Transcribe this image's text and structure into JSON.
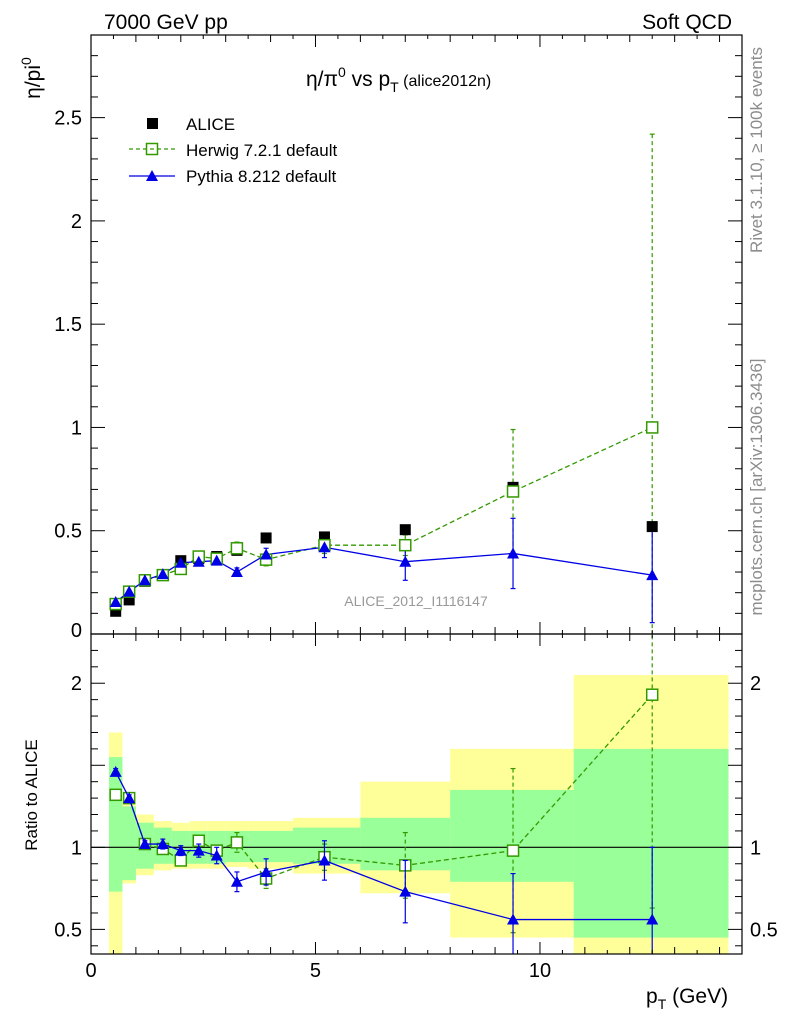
{
  "header": {
    "left": "7000 GeV pp",
    "right": "Soft QCD"
  },
  "side_labels": {
    "rivet": "Rivet 3.1.10, ≥ 100k events",
    "mcplots": "mcplots.cern.ch [arXiv:1306.3436]"
  },
  "chart_data": [
    {
      "type": "scatter",
      "title": "η/π⁰ vs p_T (alice2012n)",
      "ylabel": "η/pi⁰",
      "xlim": [
        0,
        14.5
      ],
      "ylim": [
        0,
        2.9
      ],
      "yticks": [
        "0",
        "0.5",
        "1",
        "1.5",
        "2",
        "2.5"
      ],
      "watermark": "ALICE_2012_I1116147",
      "series": [
        {
          "name": "ALICE",
          "color": "#000000",
          "x": [
            0.55,
            0.85,
            1.2,
            1.6,
            2.0,
            2.4,
            2.8,
            3.25,
            3.9,
            5.2,
            7.0,
            9.4,
            12.5
          ],
          "y": [
            0.11,
            0.165,
            0.255,
            0.285,
            0.355,
            0.365,
            0.375,
            0.405,
            0.465,
            0.47,
            0.505,
            0.71,
            0.52
          ]
        },
        {
          "name": "Herwig 7.2.1 default",
          "color": "#339900",
          "x": [
            0.55,
            0.85,
            1.2,
            1.6,
            2.0,
            2.4,
            2.8,
            3.25,
            3.9,
            5.2,
            7.0,
            9.4,
            12.5
          ],
          "y": [
            0.145,
            0.205,
            0.26,
            0.285,
            0.315,
            0.375,
            0.365,
            0.415,
            0.36,
            0.43,
            0.43,
            0.69,
            1.0
          ],
          "err": [
            0.02,
            0.02,
            0.02,
            0.02,
            0.02,
            0.02,
            0.02,
            0.03,
            0.03,
            0.04,
            0.05,
            0.3,
            1.42
          ]
        },
        {
          "name": "Pythia 8.212 default",
          "color": "#0000e6",
          "x": [
            0.55,
            0.85,
            1.2,
            1.6,
            2.0,
            2.4,
            2.8,
            3.25,
            3.9,
            5.2,
            7.0,
            9.4,
            12.5
          ],
          "y": [
            0.155,
            0.205,
            0.26,
            0.29,
            0.345,
            0.35,
            0.355,
            0.3,
            0.385,
            0.42,
            0.35,
            0.39,
            0.285
          ],
          "err": [
            0.015,
            0.015,
            0.015,
            0.015,
            0.02,
            0.02,
            0.02,
            0.02,
            0.03,
            0.05,
            0.09,
            0.17,
            0.23
          ]
        }
      ]
    },
    {
      "type": "scatter",
      "ylabel": "Ratio to ALICE",
      "xlabel": "p_T (GeV)",
      "xlim": [
        0,
        14.5
      ],
      "ylim": [
        0.35,
        2.3
      ],
      "xticks": [
        "0",
        "5",
        "10"
      ],
      "yticks": [
        "0.5",
        "1",
        "2"
      ],
      "bands": [
        {
          "x0": 0.4,
          "x1": 0.7,
          "stat": [
            0.73,
            1.55
          ],
          "tot": [
            0.3,
            1.7
          ]
        },
        {
          "x0": 0.7,
          "x1": 1.0,
          "stat": [
            0.8,
            1.25
          ],
          "tot": [
            0.78,
            1.3
          ]
        },
        {
          "x0": 1.0,
          "x1": 1.4,
          "stat": [
            0.87,
            1.15
          ],
          "tot": [
            0.83,
            1.2
          ]
        },
        {
          "x0": 1.4,
          "x1": 1.8,
          "stat": [
            0.9,
            1.12
          ],
          "tot": [
            0.86,
            1.16
          ]
        },
        {
          "x0": 1.8,
          "x1": 2.2,
          "stat": [
            0.9,
            1.1
          ],
          "tot": [
            0.87,
            1.15
          ]
        },
        {
          "x0": 2.2,
          "x1": 2.6,
          "stat": [
            0.9,
            1.1
          ],
          "tot": [
            0.87,
            1.16
          ]
        },
        {
          "x0": 2.6,
          "x1": 3.0,
          "stat": [
            0.9,
            1.1
          ],
          "tot": [
            0.87,
            1.16
          ]
        },
        {
          "x0": 3.0,
          "x1": 3.5,
          "stat": [
            0.91,
            1.1
          ],
          "tot": [
            0.88,
            1.16
          ]
        },
        {
          "x0": 3.5,
          "x1": 4.5,
          "stat": [
            0.91,
            1.1
          ],
          "tot": [
            0.87,
            1.16
          ]
        },
        {
          "x0": 4.5,
          "x1": 6.0,
          "stat": [
            0.9,
            1.12
          ],
          "tot": [
            0.84,
            1.18
          ]
        },
        {
          "x0": 6.0,
          "x1": 8.0,
          "stat": [
            0.86,
            1.18
          ],
          "tot": [
            0.72,
            1.4
          ]
        },
        {
          "x0": 8.0,
          "x1": 10.75,
          "stat": [
            0.79,
            1.35
          ],
          "tot": [
            0.45,
            1.6
          ]
        },
        {
          "x0": 10.75,
          "x1": 14.2,
          "stat": [
            0.45,
            1.6
          ],
          "tot": [
            0.35,
            2.05
          ]
        }
      ],
      "series": [
        {
          "name": "Herwig 7.2.1 default",
          "color": "#339900",
          "x": [
            0.55,
            0.85,
            1.2,
            1.6,
            2.0,
            2.4,
            2.8,
            3.25,
            3.9,
            5.2,
            7.0,
            9.4,
            12.5
          ],
          "y": [
            1.32,
            1.3,
            1.02,
            0.99,
            0.92,
            1.04,
            0.98,
            1.03,
            0.81,
            0.94,
            0.89,
            0.98,
            1.93
          ],
          "err": [
            0.02,
            0.02,
            0.02,
            0.02,
            0.03,
            0.03,
            0.03,
            0.06,
            0.06,
            0.08,
            0.2,
            0.5,
            1.3
          ]
        },
        {
          "name": "Pythia 8.212 default",
          "color": "#0000e6",
          "x": [
            0.55,
            0.85,
            1.2,
            1.6,
            2.0,
            2.4,
            2.8,
            3.25,
            3.9,
            5.2,
            7.0,
            9.4,
            12.5
          ],
          "y": [
            1.46,
            1.3,
            1.02,
            1.02,
            0.98,
            0.98,
            0.95,
            0.79,
            0.85,
            0.92,
            0.73,
            0.56,
            0.56
          ],
          "err": [
            0.02,
            0.02,
            0.02,
            0.03,
            0.03,
            0.04,
            0.05,
            0.06,
            0.08,
            0.12,
            0.19,
            0.28,
            0.44
          ]
        }
      ]
    }
  ]
}
